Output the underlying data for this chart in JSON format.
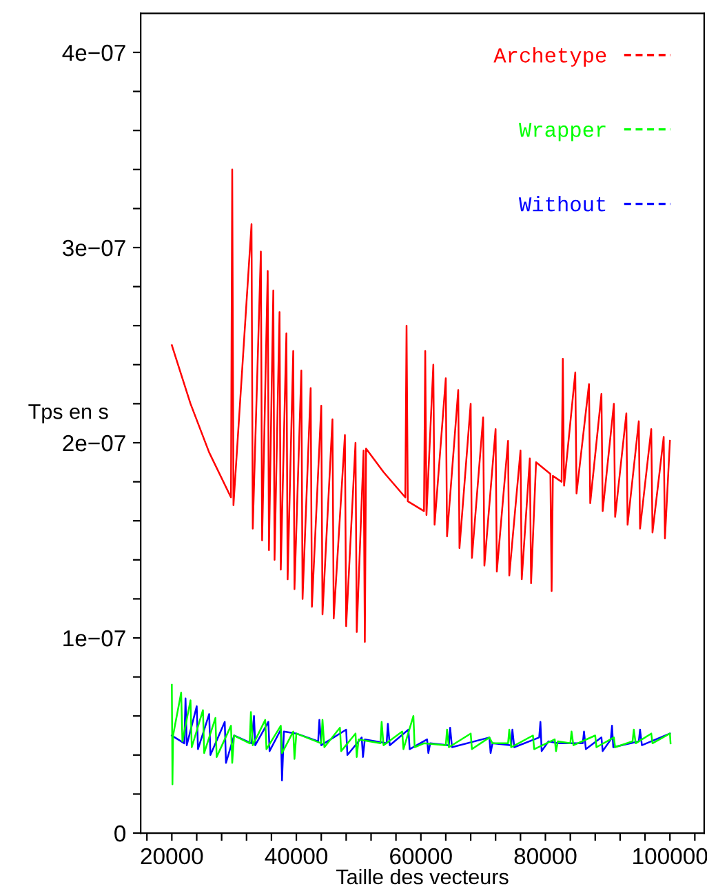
{
  "chart_data": {
    "type": "line",
    "xlabel": "Taille des vecteurs",
    "ylabel": "Tps en s",
    "xlim": [
      15000,
      105500
    ],
    "ylim": [
      0,
      4.2e-07
    ],
    "xticks": [
      {
        "value": 16000,
        "label": null
      },
      {
        "value": 20000,
        "label": "20000"
      },
      {
        "value": 24000,
        "label": null
      },
      {
        "value": 28000,
        "label": null
      },
      {
        "value": 32000,
        "label": null
      },
      {
        "value": 36000,
        "label": null
      },
      {
        "value": 40000,
        "label": "40000"
      },
      {
        "value": 44000,
        "label": null
      },
      {
        "value": 48000,
        "label": null
      },
      {
        "value": 52000,
        "label": null
      },
      {
        "value": 56000,
        "label": null
      },
      {
        "value": 60000,
        "label": "60000"
      },
      {
        "value": 64000,
        "label": null
      },
      {
        "value": 68000,
        "label": null
      },
      {
        "value": 72000,
        "label": null
      },
      {
        "value": 76000,
        "label": null
      },
      {
        "value": 80000,
        "label": "80000"
      },
      {
        "value": 84000,
        "label": null
      },
      {
        "value": 88000,
        "label": null
      },
      {
        "value": 92000,
        "label": null
      },
      {
        "value": 96000,
        "label": null
      },
      {
        "value": 100000,
        "label": "100000"
      },
      {
        "value": 104000,
        "label": null
      }
    ],
    "yticks": [
      {
        "value": 0,
        "label": "0"
      },
      {
        "value": 2e-08,
        "label": null
      },
      {
        "value": 4e-08,
        "label": null
      },
      {
        "value": 6e-08,
        "label": null
      },
      {
        "value": 8e-08,
        "label": null
      },
      {
        "value": 1e-07,
        "label": "1e−07"
      },
      {
        "value": 1.2e-07,
        "label": null
      },
      {
        "value": 1.4e-07,
        "label": null
      },
      {
        "value": 1.6e-07,
        "label": null
      },
      {
        "value": 1.8e-07,
        "label": null
      },
      {
        "value": 2e-07,
        "label": "2e−07"
      },
      {
        "value": 2.2e-07,
        "label": null
      },
      {
        "value": 2.4e-07,
        "label": null
      },
      {
        "value": 2.6e-07,
        "label": null
      },
      {
        "value": 2.8e-07,
        "label": null
      },
      {
        "value": 3e-07,
        "label": "3e−07"
      },
      {
        "value": 3.2e-07,
        "label": null
      },
      {
        "value": 3.4e-07,
        "label": null
      },
      {
        "value": 3.6e-07,
        "label": null
      },
      {
        "value": 3.8e-07,
        "label": null
      },
      {
        "value": 4e-07,
        "label": "4e−07"
      }
    ],
    "grid": false,
    "legend": "top right",
    "series": [
      {
        "name": "Archetype",
        "color": "#ff0000",
        "x": [
          20000,
          23000,
          26000,
          29500,
          29700,
          29900,
          32800,
          33000,
          34300,
          34500,
          35400,
          35600,
          36300,
          36500,
          37300,
          37500,
          38400,
          38600,
          39500,
          39700,
          40800,
          41000,
          42300,
          42500,
          44000,
          44200,
          45800,
          46000,
          47800,
          48000,
          49500,
          49700,
          50800,
          51000,
          51200,
          54000,
          57500,
          57700,
          57900,
          60500,
          60700,
          60900,
          62000,
          62200,
          64000,
          64200,
          66000,
          66200,
          68000,
          68200,
          70000,
          70200,
          72000,
          72200,
          74000,
          74200,
          76000,
          76200,
          77500,
          77700,
          78500,
          80800,
          81000,
          81200,
          82600,
          82800,
          83000,
          84800,
          85000,
          87000,
          87200,
          89000,
          89200,
          91000,
          91200,
          93000,
          93200,
          95000,
          95200,
          97000,
          97200,
          99000,
          99200,
          100000
        ],
        "values": [
          2.5e-07,
          2.2e-07,
          1.95e-07,
          1.72e-07,
          3.4e-07,
          1.68e-07,
          3.12e-07,
          1.56e-07,
          2.98e-07,
          1.5e-07,
          2.88e-07,
          1.45e-07,
          2.78e-07,
          1.4e-07,
          2.67e-07,
          1.35e-07,
          2.56e-07,
          1.3e-07,
          2.47e-07,
          1.25e-07,
          2.37e-07,
          1.2e-07,
          2.28e-07,
          1.16e-07,
          2.19e-07,
          1.12e-07,
          2.12e-07,
          1.1e-07,
          2.04e-07,
          1.06e-07,
          2e-07,
          1.03e-07,
          1.96e-07,
          9.8e-08,
          1.97e-07,
          1.85e-07,
          1.72e-07,
          2.6e-07,
          1.7e-07,
          1.65e-07,
          2.47e-07,
          1.63e-07,
          2.4e-07,
          1.58e-07,
          2.33e-07,
          1.52e-07,
          2.27e-07,
          1.46e-07,
          2.2e-07,
          1.41e-07,
          2.13e-07,
          1.37e-07,
          2.07e-07,
          1.34e-07,
          2.01e-07,
          1.32e-07,
          1.96e-07,
          1.3e-07,
          1.92e-07,
          1.28e-07,
          1.9e-07,
          1.84e-07,
          1.24e-07,
          1.83e-07,
          1.8e-07,
          2.43e-07,
          1.78e-07,
          2.36e-07,
          1.74e-07,
          2.3e-07,
          1.69e-07,
          2.25e-07,
          1.65e-07,
          2.2e-07,
          1.62e-07,
          2.15e-07,
          1.58e-07,
          2.11e-07,
          1.56e-07,
          2.07e-07,
          1.54e-07,
          2.03e-07,
          1.51e-07,
          2.01e-07
        ]
      },
      {
        "name": "Wrapper",
        "color": "#00ff00",
        "x": [
          20000,
          20100,
          20200,
          21500,
          21700,
          23000,
          23200,
          25000,
          25200,
          27000,
          27200,
          29500,
          29700,
          30000,
          32500,
          32700,
          33000,
          35000,
          35200,
          37500,
          37700,
          39500,
          39700,
          40000,
          44000,
          44200,
          44500,
          47000,
          47200,
          49500,
          49700,
          50000,
          53500,
          53700,
          54000,
          57000,
          57200,
          58800,
          59000,
          60500,
          64000,
          64200,
          64500,
          68000,
          68200,
          71000,
          71500,
          74000,
          74200,
          74500,
          78000,
          78200,
          81500,
          81700,
          82000,
          84000,
          84200,
          84500,
          88000,
          88200,
          91000,
          91200,
          94000,
          94200,
          94500,
          97000,
          97200,
          100000,
          100100
        ],
        "values": [
          7.6e-08,
          2.5e-08,
          5e-08,
          7.2e-08,
          4.7e-08,
          6.8e-08,
          4.4e-08,
          6.3e-08,
          4.1e-08,
          5.9e-08,
          3.9e-08,
          5.5e-08,
          3.6e-08,
          5e-08,
          4.6e-08,
          6.2e-08,
          4.5e-08,
          5.8e-08,
          4.3e-08,
          5.5e-08,
          4.1e-08,
          5.2e-08,
          3.8e-08,
          5.1e-08,
          4.6e-08,
          5.8e-08,
          4.4e-08,
          5.4e-08,
          4.2e-08,
          5.1e-08,
          3.9e-08,
          4.8e-08,
          4.6e-08,
          5.7e-08,
          4.5e-08,
          5.2e-08,
          4.3e-08,
          6e-08,
          4.4e-08,
          4.6e-08,
          4.5e-08,
          5.3e-08,
          4.4e-08,
          5.1e-08,
          4.3e-08,
          4.9e-08,
          4.6e-08,
          4.6e-08,
          5.3e-08,
          4.4e-08,
          5e-08,
          4.3e-08,
          4.8e-08,
          4.2e-08,
          4.7e-08,
          4.6e-08,
          5.2e-08,
          4.5e-08,
          5e-08,
          4.4e-08,
          4.9e-08,
          4.4e-08,
          4.7e-08,
          5.3e-08,
          4.6e-08,
          5.1e-08,
          4.6e-08,
          5.1e-08,
          4.6e-08
        ]
      },
      {
        "name": "Without",
        "color": "#0000ff",
        "x": [
          20000,
          22000,
          22200,
          22400,
          24000,
          24200,
          26000,
          26200,
          28500,
          28700,
          30000,
          32800,
          33200,
          33400,
          35500,
          35700,
          37500,
          37700,
          38000,
          40000,
          43500,
          43700,
          44000,
          48000,
          48200,
          50500,
          50700,
          51000,
          54500,
          54700,
          55000,
          58000,
          58200,
          61000,
          61200,
          61500,
          64500,
          64700,
          65000,
          71000,
          71200,
          71500,
          74500,
          74700,
          75000,
          79000,
          79200,
          79400,
          80500,
          82000,
          86000,
          86200,
          86500,
          89000,
          89200,
          90500,
          90700,
          90900,
          95000,
          95200,
          95500,
          100000
        ],
        "values": [
          5e-08,
          4.6e-08,
          6.9e-08,
          4.5e-08,
          6.5e-08,
          4.3e-08,
          6.1e-08,
          4e-08,
          5.7e-08,
          3.6e-08,
          5e-08,
          4.6e-08,
          6e-08,
          4.5e-08,
          5.7e-08,
          4.2e-08,
          5.3e-08,
          2.7e-08,
          5.2e-08,
          5.1e-08,
          4.7e-08,
          5.8e-08,
          4.5e-08,
          5.3e-08,
          4e-08,
          4.9e-08,
          3.9e-08,
          4.8e-08,
          4.6e-08,
          5.6e-08,
          4.5e-08,
          5.3e-08,
          4.3e-08,
          4.8e-08,
          4.1e-08,
          4.6e-08,
          4.5e-08,
          5.4e-08,
          4.4e-08,
          4.9e-08,
          4.1e-08,
          4.6e-08,
          4.5e-08,
          5.3e-08,
          4.4e-08,
          4.9e-08,
          5.7e-08,
          4.2e-08,
          4.7e-08,
          4.6e-08,
          4.6e-08,
          5.2e-08,
          4.3e-08,
          4.9e-08,
          4.2e-08,
          4.8e-08,
          5.5e-08,
          4.4e-08,
          4.7e-08,
          5.3e-08,
          4.5e-08,
          5.1e-08
        ]
      }
    ]
  }
}
